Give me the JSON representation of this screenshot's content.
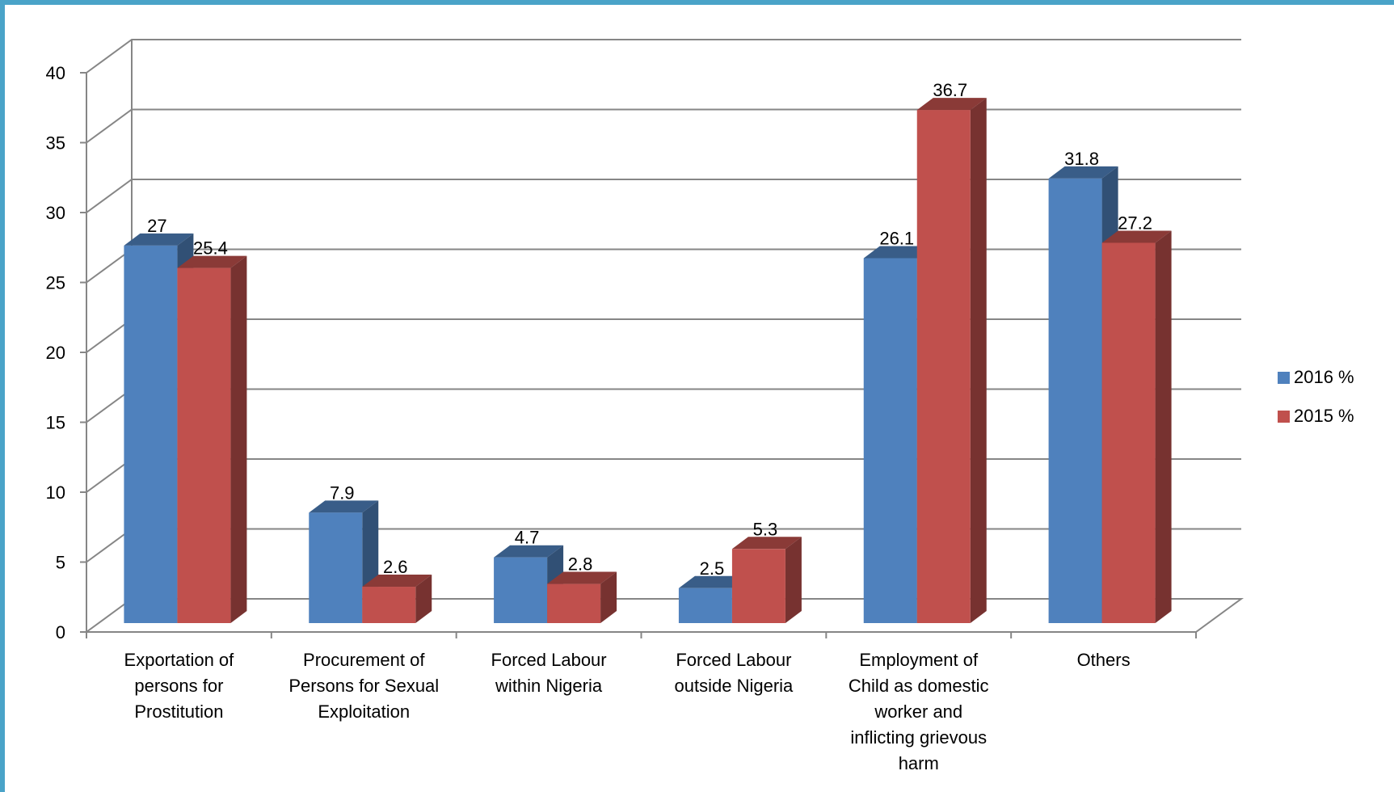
{
  "chart_data": {
    "type": "bar",
    "categories": [
      [
        "Exportation of",
        "persons for",
        "Prostitution"
      ],
      [
        "Procurement of",
        "Persons for Sexual",
        "Exploitation"
      ],
      [
        "Forced Labour",
        "within Nigeria"
      ],
      [
        "Forced Labour",
        "outside Nigeria"
      ],
      [
        "Employment of",
        "Child as domestic",
        "worker and",
        "inflicting grievous",
        "harm"
      ],
      [
        "Others"
      ]
    ],
    "series": [
      {
        "name": "2016 %",
        "values": [
          27,
          7.9,
          4.7,
          2.5,
          26.1,
          31.8
        ],
        "data_labels": [
          "27",
          "7.9",
          "4.7",
          "2.5",
          "26.1",
          "31.8"
        ]
      },
      {
        "name": "2015 %",
        "values": [
          25.4,
          2.6,
          2.8,
          5.3,
          36.7,
          27.2
        ],
        "data_labels": [
          "25.4",
          "2.6",
          "2.8",
          "5.3",
          "36.7",
          "27.2"
        ]
      }
    ],
    "yticks": [
      "0",
      "5",
      "10",
      "15",
      "20",
      "25",
      "30",
      "35",
      "40"
    ],
    "ylim": [
      0,
      40
    ],
    "grid": true,
    "legend_position": "right",
    "style": "3d-clustered-column",
    "colors": {
      "2016 %": "#4f81bd",
      "2015 %": "#c0504d",
      "gridline": "#868686",
      "border": "#4aa3c8"
    }
  }
}
